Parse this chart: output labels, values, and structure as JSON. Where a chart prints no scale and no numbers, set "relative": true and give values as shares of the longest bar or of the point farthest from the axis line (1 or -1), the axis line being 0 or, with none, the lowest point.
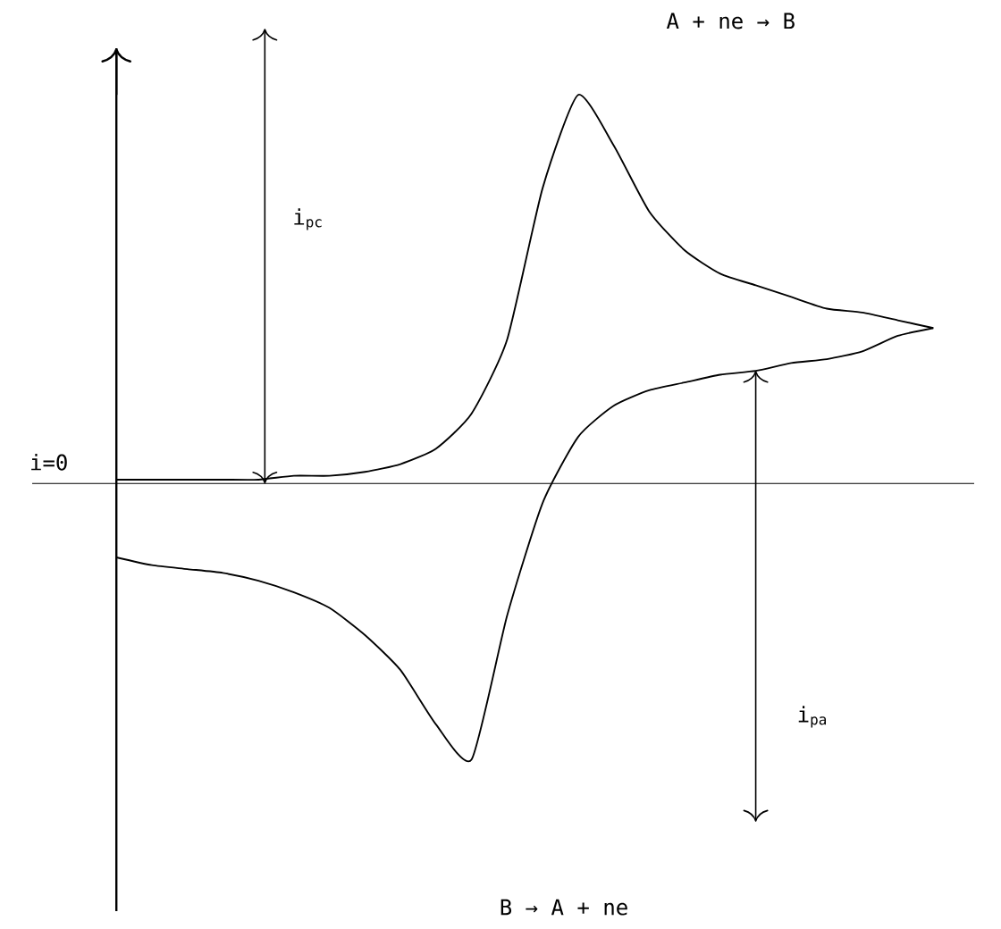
{
  "chart_data": {
    "type": "line",
    "relative": true,
    "categories": [
      null,
      null,
      null,
      null,
      null,
      null,
      null,
      null,
      null,
      null,
      null,
      null,
      null,
      null,
      null,
      null,
      null,
      null,
      null,
      null,
      null,
      null,
      null,
      null
    ],
    "series": [
      {
        "color": "#000000",
        "values": [
          0.01,
          0.01,
          0.01,
          0.01,
          0.01,
          0.02,
          0.02,
          0.03,
          0.05,
          0.09,
          0.18,
          0.37,
          0.76,
          1.0,
          0.87,
          0.7,
          0.6,
          0.54,
          0.51,
          0.48,
          0.45,
          0.44,
          0.42,
          0.4
        ]
      },
      {
        "color": "#000000",
        "values": [
          -0.19,
          -0.21,
          -0.22,
          -0.23,
          -0.25,
          -0.28,
          -0.32,
          -0.39,
          -0.48,
          -0.62,
          -0.71,
          -0.34,
          -0.05,
          0.12,
          0.2,
          0.24,
          0.26,
          0.28,
          0.29,
          0.31,
          0.32,
          0.34,
          0.38,
          0.4
        ]
      }
    ],
    "annotations": [
      "A + ne → B",
      "B → A + ne",
      "i$_{pc}$",
      "i$_{pa}$",
      "i=0"
    ],
    "marker": "none",
    "line_style": "solid"
  }
}
